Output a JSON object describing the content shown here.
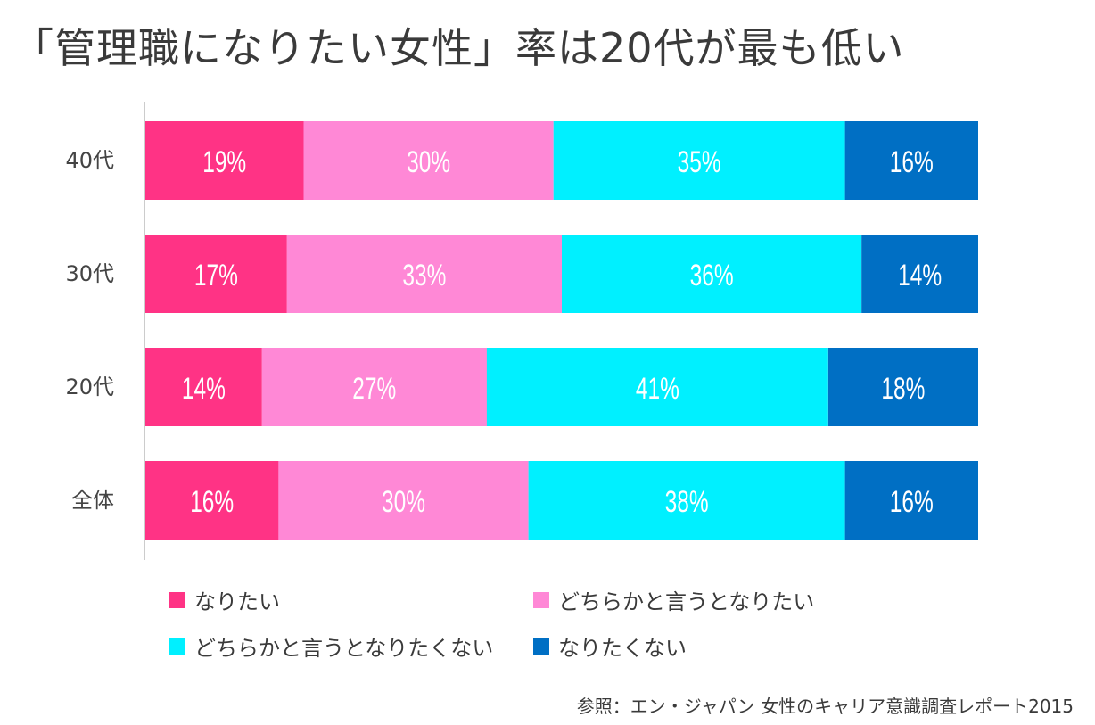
{
  "title": "「管理職になりたい女性」率は20代が最も低い",
  "source": "参照：エン・ジャパン 女性のキャリア意識調査レポート2015",
  "chart_data": {
    "type": "bar",
    "orientation": "horizontal",
    "stacked": true,
    "percent_stacked": true,
    "categories": [
      "40代",
      "30代",
      "20代",
      "全体"
    ],
    "series": [
      {
        "name": "なりたい",
        "color": "#ff3385",
        "values": [
          19,
          17,
          14,
          16
        ],
        "labels": [
          "19%",
          "17%",
          "14%",
          "16%"
        ]
      },
      {
        "name": "どちらかと言うとなりたい",
        "color": "#ff88d6",
        "values": [
          30,
          33,
          27,
          30
        ],
        "labels": [
          "30%",
          "33%",
          "27%",
          "30%"
        ]
      },
      {
        "name": "どちらかと言うとなりたくない",
        "color": "#00f0ff",
        "values": [
          35,
          36,
          41,
          38
        ],
        "labels": [
          "35%",
          "36%",
          "41%",
          "38%"
        ]
      },
      {
        "name": "なりたくない",
        "color": "#006fc4",
        "values": [
          16,
          14,
          18,
          16
        ],
        "labels": [
          "16%",
          "14%",
          "18%",
          "16%"
        ]
      }
    ],
    "xlim": [
      0,
      100
    ],
    "grid": false,
    "legend_position": "bottom"
  }
}
